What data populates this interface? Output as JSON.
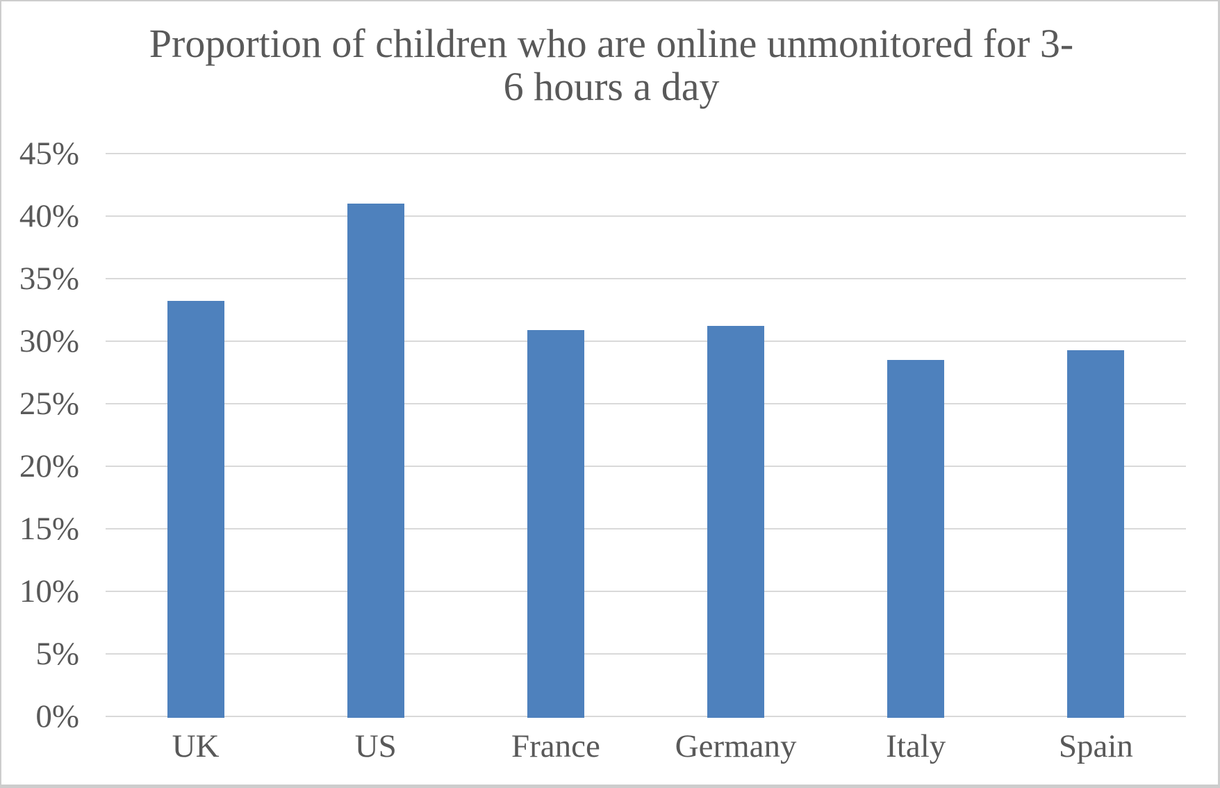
{
  "chart_data": {
    "type": "bar",
    "title": "Proportion of children who are online unmonitored for 3-6 hours a day",
    "title_lines": [
      "Proportion of children who are online unmonitored for 3-",
      "6 hours a day"
    ],
    "categories": [
      "UK",
      "US",
      "France",
      "Germany",
      "Italy",
      "Spain"
    ],
    "values": [
      33.2,
      41,
      30.9,
      31.2,
      28.5,
      29.3
    ],
    "xlabel": "",
    "ylabel": "",
    "ylim": [
      0,
      45
    ],
    "ytick_step": 5,
    "ytick_labels": [
      "0%",
      "5%",
      "10%",
      "15%",
      "20%",
      "25%",
      "30%",
      "35%",
      "40%",
      "45%"
    ],
    "grid": true,
    "legend": false,
    "colors": {
      "bar": "#4E81BD",
      "gridline": "#D9D9D9",
      "text": "#595959",
      "frame_border": "#CDCDCD",
      "background": "#FFFFFF"
    }
  }
}
